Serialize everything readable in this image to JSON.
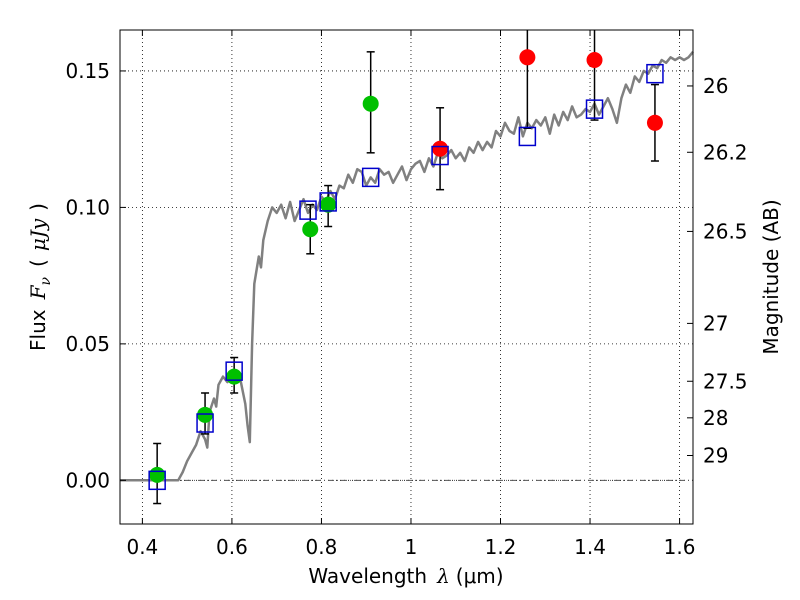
{
  "chart_data": {
    "type": "scatter",
    "title": "",
    "xlabel": "Wavelength",
    "xlabel_symbol": "λ",
    "xlabel_unit": "(μm)",
    "ylabel": "Flux",
    "ylabel_symbol": "F",
    "ylabel_subscript": "ν",
    "ylabel_unit_open": "(",
    "ylabel_unit": "μJy",
    "ylabel_unit_close": ")",
    "y2label": "Magnitude (AB)",
    "xlim": [
      0.35,
      1.63
    ],
    "ylim": [
      -0.016,
      0.165
    ],
    "grid": true,
    "legend": "none",
    "x_ticks": [
      0.4,
      0.6,
      0.8,
      1.0,
      1.2,
      1.4,
      1.6
    ],
    "x_tick_labels": [
      "0.4",
      "0.6",
      "0.8",
      "1",
      "1.2",
      "1.4",
      "1.6"
    ],
    "y_ticks": [
      0.0,
      0.05,
      0.1,
      0.15
    ],
    "y_tick_labels": [
      "0.00",
      "0.05",
      "0.10",
      "0.15"
    ],
    "y2_ticks": [
      {
        "label": "26",
        "flux": 0.1445
      },
      {
        "label": "26.2",
        "flux": 0.1202
      },
      {
        "label": "26.5",
        "flux": 0.0912
      },
      {
        "label": "27",
        "flux": 0.0575
      },
      {
        "label": "27.5",
        "flux": 0.0363
      },
      {
        "label": "28",
        "flux": 0.0229
      },
      {
        "label": "29",
        "flux": 0.0091
      }
    ],
    "colors": {
      "template": "#808080",
      "green_points": "#00c000",
      "red_points": "#ff0000",
      "model_squares": "#0000cc",
      "errorbars": "#000000",
      "zero_line": "#555555"
    },
    "series": [
      {
        "name": "template spectrum",
        "kind": "line",
        "x": [
          0.35,
          0.45,
          0.47,
          0.48,
          0.49,
          0.5,
          0.51,
          0.52,
          0.53,
          0.54,
          0.545,
          0.55,
          0.56,
          0.565,
          0.57,
          0.58,
          0.59,
          0.6,
          0.61,
          0.62,
          0.63,
          0.635,
          0.64,
          0.645,
          0.65,
          0.66,
          0.665,
          0.67,
          0.68,
          0.69,
          0.7,
          0.71,
          0.72,
          0.73,
          0.74,
          0.75,
          0.76,
          0.77,
          0.78,
          0.79,
          0.8,
          0.81,
          0.82,
          0.83,
          0.84,
          0.85,
          0.86,
          0.87,
          0.88,
          0.89,
          0.9,
          0.91,
          0.92,
          0.93,
          0.94,
          0.95,
          0.96,
          0.97,
          0.98,
          0.99,
          1.0,
          1.01,
          1.02,
          1.03,
          1.04,
          1.05,
          1.06,
          1.07,
          1.08,
          1.09,
          1.1,
          1.11,
          1.12,
          1.13,
          1.14,
          1.15,
          1.16,
          1.17,
          1.18,
          1.19,
          1.2,
          1.21,
          1.22,
          1.23,
          1.24,
          1.25,
          1.26,
          1.27,
          1.28,
          1.29,
          1.3,
          1.31,
          1.32,
          1.33,
          1.34,
          1.35,
          1.36,
          1.37,
          1.38,
          1.39,
          1.4,
          1.41,
          1.42,
          1.43,
          1.44,
          1.45,
          1.46,
          1.47,
          1.48,
          1.49,
          1.5,
          1.51,
          1.52,
          1.53,
          1.54,
          1.55,
          1.56,
          1.57,
          1.58,
          1.59,
          1.6,
          1.61,
          1.62,
          1.63
        ],
        "values": [
          0.0,
          0.0,
          0.0,
          0.0,
          0.003,
          0.007,
          0.01,
          0.013,
          0.018,
          0.015,
          0.012,
          0.025,
          0.03,
          0.027,
          0.035,
          0.038,
          0.036,
          0.04,
          0.038,
          0.036,
          0.028,
          0.02,
          0.014,
          0.05,
          0.072,
          0.082,
          0.078,
          0.088,
          0.095,
          0.1,
          0.098,
          0.101,
          0.096,
          0.102,
          0.095,
          0.099,
          0.103,
          0.098,
          0.101,
          0.099,
          0.104,
          0.102,
          0.106,
          0.103,
          0.108,
          0.107,
          0.112,
          0.109,
          0.114,
          0.113,
          0.108,
          0.111,
          0.109,
          0.114,
          0.112,
          0.113,
          0.109,
          0.112,
          0.115,
          0.11,
          0.114,
          0.116,
          0.117,
          0.113,
          0.118,
          0.115,
          0.12,
          0.118,
          0.119,
          0.121,
          0.118,
          0.12,
          0.117,
          0.122,
          0.12,
          0.124,
          0.121,
          0.124,
          0.122,
          0.128,
          0.126,
          0.131,
          0.128,
          0.127,
          0.133,
          0.126,
          0.131,
          0.129,
          0.132,
          0.13,
          0.133,
          0.127,
          0.134,
          0.13,
          0.135,
          0.132,
          0.137,
          0.133,
          0.134,
          0.136,
          0.135,
          0.138,
          0.134,
          0.137,
          0.14,
          0.136,
          0.131,
          0.14,
          0.145,
          0.142,
          0.148,
          0.146,
          0.15,
          0.149,
          0.152,
          0.151,
          0.154,
          0.153,
          0.155,
          0.154,
          0.155,
          0.154,
          0.155,
          0.157
        ]
      },
      {
        "name": "green photometry",
        "kind": "points",
        "x": [
          0.433,
          0.54,
          0.605,
          0.775,
          0.815,
          0.91
        ],
        "values": [
          0.002,
          0.024,
          0.038,
          0.092,
          0.101,
          0.138
        ],
        "err_low": [
          0.0105,
          0.007,
          0.006,
          0.009,
          0.008,
          0.018
        ],
        "err_high": [
          0.0115,
          0.008,
          0.007,
          0.009,
          0.007,
          0.019
        ]
      },
      {
        "name": "red photometry",
        "kind": "points",
        "x": [
          1.065,
          1.26,
          1.41,
          1.545
        ],
        "values": [
          0.1215,
          0.155,
          0.154,
          0.131
        ],
        "err_low": [
          0.015,
          0.026,
          0.022,
          0.014
        ],
        "err_high": [
          0.015,
          0.026,
          0.026,
          0.014
        ]
      },
      {
        "name": "model photometry",
        "kind": "squares",
        "x": [
          0.433,
          0.54,
          0.605,
          0.77,
          0.815,
          0.91,
          1.065,
          1.26,
          1.41,
          1.545
        ],
        "values": [
          0.0,
          0.021,
          0.04,
          0.099,
          0.102,
          0.111,
          0.119,
          0.126,
          0.136,
          0.149
        ]
      }
    ]
  }
}
